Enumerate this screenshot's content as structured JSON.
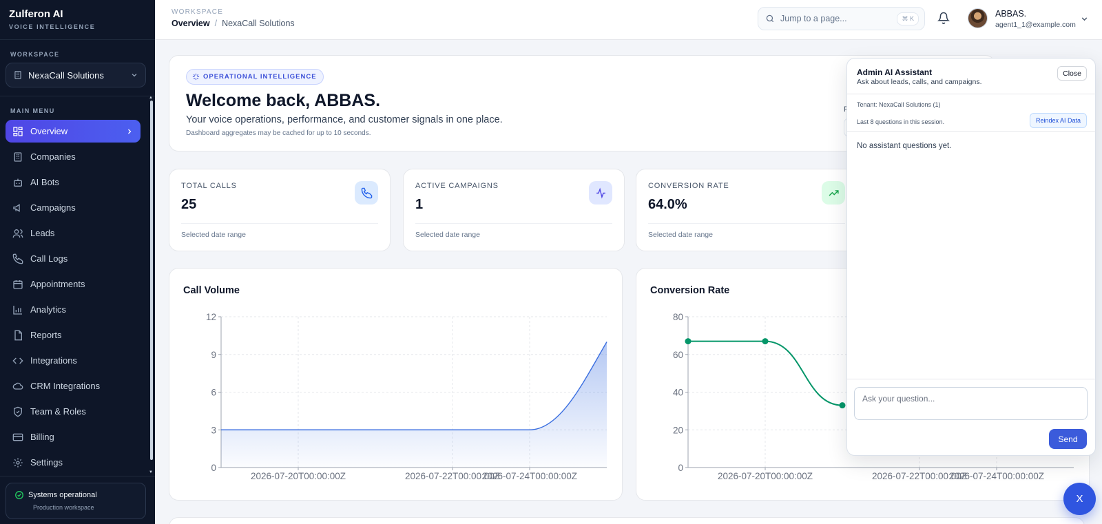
{
  "app": {
    "name": "Zulferon AI",
    "tagline": "VOICE INTELLIGENCE"
  },
  "sidebar": {
    "workspace_label": "WORKSPACE",
    "workspace_value": "NexaCall Solutions",
    "menu_label": "MAIN MENU",
    "items": [
      {
        "label": "Overview",
        "icon": "grid-icon",
        "active": true
      },
      {
        "label": "Companies",
        "icon": "building-icon"
      },
      {
        "label": "AI Bots",
        "icon": "bot-icon"
      },
      {
        "label": "Campaigns",
        "icon": "megaphone-icon"
      },
      {
        "label": "Leads",
        "icon": "users-icon"
      },
      {
        "label": "Call Logs",
        "icon": "phone-icon"
      },
      {
        "label": "Appointments",
        "icon": "calendar-icon"
      },
      {
        "label": "Analytics",
        "icon": "bar-chart-icon"
      },
      {
        "label": "Reports",
        "icon": "file-icon"
      },
      {
        "label": "Integrations",
        "icon": "code-icon"
      },
      {
        "label": "CRM Integrations",
        "icon": "cloud-icon"
      },
      {
        "label": "Team & Roles",
        "icon": "shield-icon"
      },
      {
        "label": "Billing",
        "icon": "credit-card-icon"
      },
      {
        "label": "Settings",
        "icon": "gear-icon"
      }
    ],
    "status": {
      "title": "Systems operational",
      "subtitle": "Production workspace",
      "color": "#22c55e"
    }
  },
  "topbar": {
    "crumb_label": "WORKSPACE",
    "breadcrumb_current": "Overview",
    "breadcrumb_sep": "/",
    "breadcrumb_workspace": "NexaCall Solutions",
    "search_placeholder": "Jump to a page...",
    "search_shortcut": "⌘ K",
    "user_name": "ABBAS.",
    "user_email": "agent1_1@example.com"
  },
  "welcome": {
    "badge": "OPERATIONAL INTELLIGENCE",
    "title": "Welcome back, ABBAS.",
    "lead": "Your voice operations, performance, and customer signals in one place.",
    "note": "Dashboard aggregates may be cached for up to 10 seconds.",
    "range_letter": "R"
  },
  "stats": [
    {
      "label": "TOTAL CALLS",
      "value": "25",
      "foot": "Selected date range",
      "icon": "phone-icon",
      "icon_bg": "#dbeafe",
      "icon_color": "#2563eb"
    },
    {
      "label": "ACTIVE CAMPAIGNS",
      "value": "1",
      "foot": "Selected date range",
      "icon": "activity-icon",
      "icon_bg": "#e0e7ff",
      "icon_color": "#4f46e5"
    },
    {
      "label": "CONVERSION RATE",
      "value": "64.0%",
      "foot": "Selected date range",
      "icon": "trending-up-icon",
      "icon_bg": "#dcfce7",
      "icon_color": "#16a34a"
    }
  ],
  "chart_data": [
    {
      "type": "area",
      "title": "Call Volume",
      "x": [
        "2026-07-19",
        "2026-07-20",
        "2026-07-21",
        "2026-07-22",
        "2026-07-23",
        "2026-07-24",
        "2026-07-24.5"
      ],
      "xticks": [
        "2026-07-20T00:00:00Z",
        "2026-07-22T00:00:00Z",
        "2026-07-24T00:00:00Z"
      ],
      "values": [
        3,
        3,
        3,
        3,
        3,
        3,
        10
      ],
      "ylim": [
        0,
        12
      ],
      "yticks": [
        0,
        3,
        6,
        9,
        12
      ],
      "color": "#3b6fe0",
      "grid": true
    },
    {
      "type": "line",
      "title": "Conversion Rate",
      "x": [
        "2026-07-19",
        "2026-07-20",
        "2026-07-21"
      ],
      "xticks": [
        "2026-07-20T00:00:00Z",
        "2026-07-22T00:00:00Z",
        "2026-07-24T00:00:00Z"
      ],
      "values": [
        67,
        67,
        33
      ],
      "ylim": [
        0,
        80
      ],
      "yticks": [
        0,
        20,
        40,
        60,
        80
      ],
      "color": "#059669",
      "grid": true
    }
  ],
  "assistant": {
    "title": "Admin AI Assistant",
    "subtitle": "Ask about leads, calls, and campaigns.",
    "close_label": "Close",
    "tenant": "Tenant: NexaCall Solutions (1)",
    "session_note": "Last 8 questions in this session.",
    "reindex_label": "Reindex AI Data",
    "empty": "No assistant questions yet.",
    "input_placeholder": "Ask your question...",
    "send_label": "Send",
    "fab_label": "X"
  }
}
